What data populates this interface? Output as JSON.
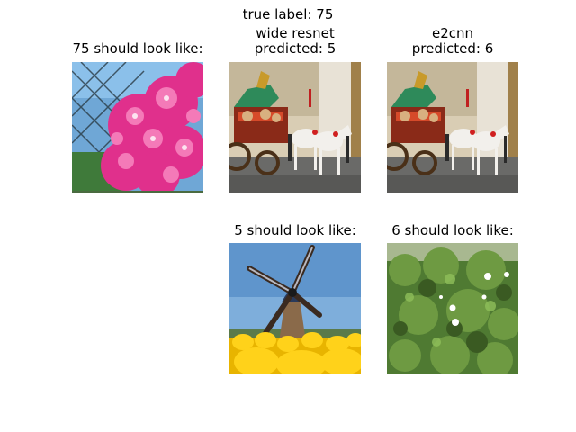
{
  "figure": {
    "main_title": "true label: 75",
    "panels": [
      {
        "title_lines": [
          "75 should look like:"
        ],
        "image": "pink-rose-flowers-photo"
      },
      {
        "title_lines": [
          "wide resnet",
          "predicted: 5"
        ],
        "image": "horse-drawn-carriage-parade-photo"
      },
      {
        "title_lines": [
          "e2cnn",
          "predicted: 6"
        ],
        "image": "horse-drawn-carriage-parade-photo"
      },
      {
        "title_lines": [
          "5 should look like:"
        ],
        "image": "windmill-yellow-tulips-photo"
      },
      {
        "title_lines": [
          "6 should look like:"
        ],
        "image": "green-shrub-white-flowers-photo"
      }
    ]
  }
}
